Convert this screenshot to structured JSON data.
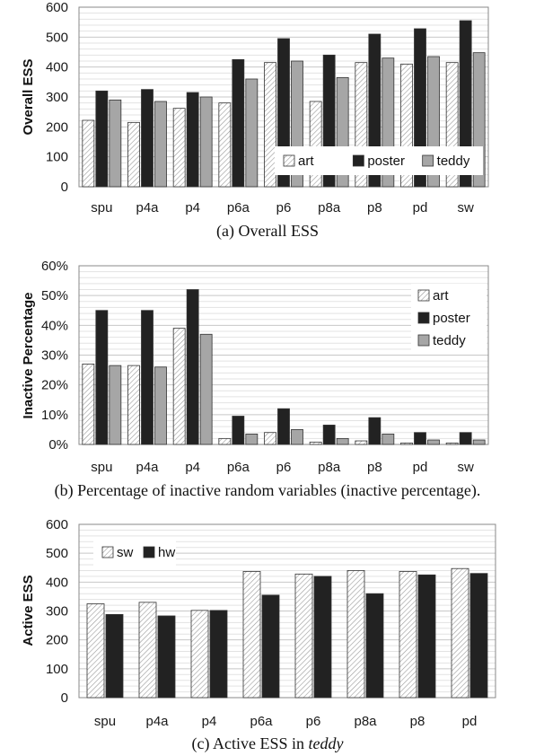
{
  "chart_data": [
    {
      "type": "bar",
      "caption": "(a) Overall ESS",
      "ylabel": "Overall ESS",
      "categories": [
        "spu",
        "p4a",
        "p4",
        "p6a",
        "p6",
        "p8a",
        "p8",
        "pd",
        "sw"
      ],
      "ylim": [
        0,
        600
      ],
      "yticks": [
        "0",
        "100",
        "200",
        "300",
        "400",
        "500",
        "600"
      ],
      "grid": true,
      "legend_position": "bottom-right",
      "series": [
        {
          "name": "art",
          "values": [
            222,
            215,
            262,
            280,
            415,
            285,
            415,
            410,
            415
          ]
        },
        {
          "name": "poster",
          "values": [
            320,
            325,
            315,
            425,
            495,
            440,
            510,
            528,
            555
          ]
        },
        {
          "name": "teddy",
          "values": [
            290,
            285,
            300,
            360,
            420,
            365,
            430,
            435,
            448
          ]
        }
      ]
    },
    {
      "type": "bar",
      "caption": "(b) Percentage of inactive random variables (inactive percentage).",
      "ylabel": "Inactive Percentage",
      "categories": [
        "spu",
        "p4a",
        "p4",
        "p6a",
        "p6",
        "p8a",
        "p8",
        "pd",
        "sw"
      ],
      "ylim": [
        0,
        60
      ],
      "yticks": [
        "0%",
        "10%",
        "20%",
        "30%",
        "40%",
        "50%",
        "60%"
      ],
      "grid": true,
      "legend_position": "top-right",
      "series": [
        {
          "name": "art",
          "values": [
            27,
            26.5,
            39,
            2,
            4,
            0.8,
            1.2,
            0.5,
            0.5
          ]
        },
        {
          "name": "poster",
          "values": [
            45,
            45,
            52,
            9.5,
            12,
            6.5,
            9,
            4,
            4
          ]
        },
        {
          "name": "teddy",
          "values": [
            26.5,
            26,
            37,
            3.5,
            5,
            2,
            3.5,
            1.5,
            1.5
          ]
        }
      ]
    },
    {
      "type": "bar",
      "caption_prefix": "(c) Active ESS in ",
      "caption_italic": "teddy",
      "ylabel": "Active ESS",
      "categories": [
        "spu",
        "p4a",
        "p4",
        "p6a",
        "p6",
        "p8a",
        "p8",
        "pd"
      ],
      "ylim": [
        0,
        600
      ],
      "yticks": [
        "0",
        "100",
        "200",
        "300",
        "400",
        "500",
        "600"
      ],
      "grid": true,
      "legend_position": "top-left",
      "series": [
        {
          "name": "sw",
          "values": [
            325,
            330,
            302,
            437,
            428,
            440,
            437,
            447
          ]
        },
        {
          "name": "hw",
          "values": [
            288,
            283,
            302,
            355,
            420,
            360,
            425,
            430
          ]
        }
      ]
    }
  ],
  "colors": {
    "art": "#ffffff",
    "poster": "#222222",
    "teddy": "#a6a6a6",
    "sw": "#ffffff",
    "hw": "#222222",
    "grid": "#c8c8c8",
    "axis": "#888888"
  }
}
